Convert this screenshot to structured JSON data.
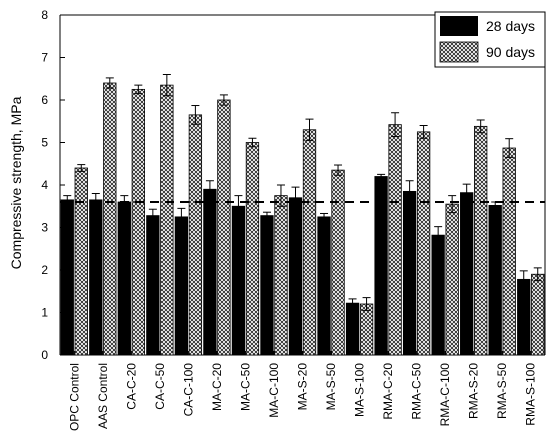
{
  "chart_data": {
    "type": "bar",
    "title": "",
    "xlabel": "",
    "ylabel": "Compressive strength, MPa",
    "ylim": [
      0,
      8
    ],
    "yticks": [
      0,
      1,
      2,
      3,
      4,
      5,
      6,
      7,
      8
    ],
    "grid": false,
    "legend_position": "top-right",
    "categories": [
      "OPC Control",
      "AAS Control",
      "CA-C-20",
      "CA-C-50",
      "CA-C-100",
      "MA-C-20",
      "MA-C-50",
      "MA-C-100",
      "MA-S-20",
      "MA-S-50",
      "MA-S-100",
      "RMA-C-20",
      "RMA-C-50",
      "RMA-C-100",
      "RMA-S-20",
      "RMA-S-50",
      "RMA-S-100"
    ],
    "series": [
      {
        "name": "28 days",
        "fill": "solid",
        "color": "#000000",
        "values": [
          3.65,
          3.65,
          3.6,
          3.28,
          3.25,
          3.9,
          3.5,
          3.28,
          3.7,
          3.25,
          1.22,
          4.2,
          3.85,
          2.82,
          3.82,
          3.52,
          1.78
        ],
        "errors": [
          0.1,
          0.15,
          0.15,
          0.15,
          0.2,
          0.2,
          0.25,
          0.08,
          0.25,
          0.08,
          0.1,
          0.05,
          0.25,
          0.2,
          0.2,
          0.08,
          0.2
        ]
      },
      {
        "name": "90 days",
        "fill": "crosshatch",
        "color": "#000000",
        "values": [
          4.4,
          6.4,
          6.25,
          6.35,
          5.65,
          6.0,
          5.0,
          3.75,
          5.3,
          4.35,
          1.2,
          5.42,
          5.25,
          3.55,
          5.38,
          4.87,
          1.9
        ],
        "errors": [
          0.08,
          0.12,
          0.1,
          0.25,
          0.22,
          0.12,
          0.1,
          0.25,
          0.25,
          0.12,
          0.15,
          0.28,
          0.15,
          0.2,
          0.15,
          0.22,
          0.15
        ]
      }
    ],
    "reference_line": {
      "y": 3.6,
      "style": "dashed"
    }
  }
}
